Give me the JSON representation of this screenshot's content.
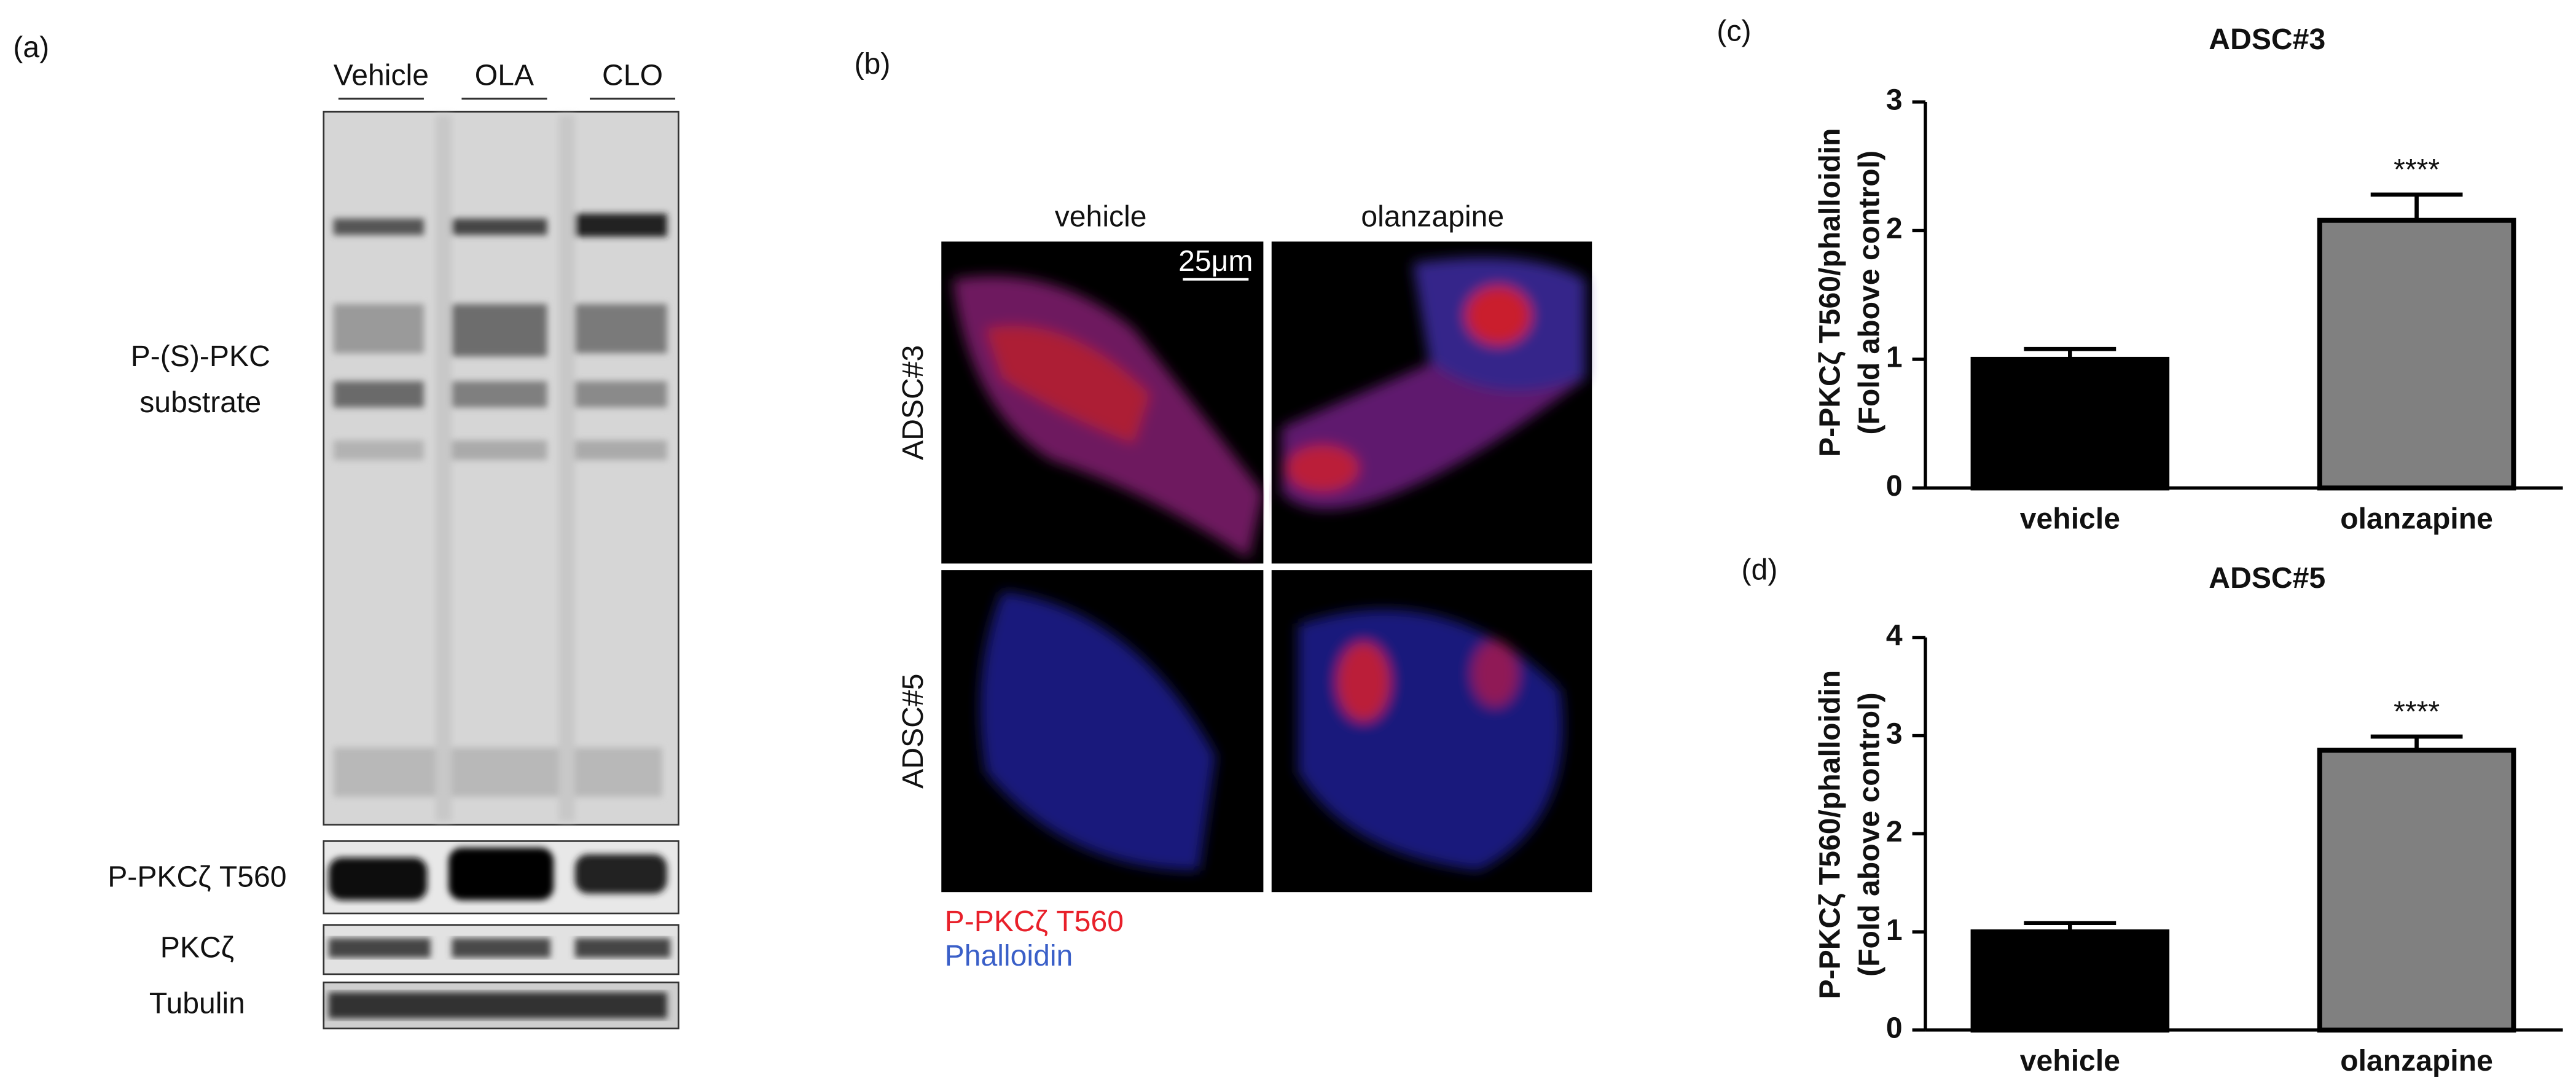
{
  "figure": {
    "a": {
      "label": "(a)",
      "lanes": [
        "Vehicle",
        "OLA",
        "CLO"
      ],
      "substrate_label": [
        "P-(S)-PKC",
        "substrate"
      ],
      "blots": [
        "P-PKCζ T560",
        "PKCζ",
        "Tubulin"
      ]
    },
    "b": {
      "label": "(b)",
      "columns": [
        "vehicle",
        "olanzapine"
      ],
      "rows": [
        "ADSC#3",
        "ADSC#5"
      ],
      "scale_bar": "25μm",
      "legend": [
        {
          "text": "P-PKCζ T560",
          "color": "#e8202a"
        },
        {
          "text": "Phalloidin",
          "color": "#3a5fc8"
        }
      ]
    }
  },
  "chart_data": [
    {
      "type": "bar",
      "panel_label": "(c)",
      "title": "ADSC#3",
      "ylabel": [
        "P-PKCζ T560/phalloidin",
        "(Fold above control)"
      ],
      "categories": [
        "vehicle",
        "olanzapine"
      ],
      "values": [
        1.0,
        2.08
      ],
      "errors": [
        0.08,
        0.2
      ],
      "colors": [
        "#000000",
        "#808080"
      ],
      "significance": [
        null,
        "****"
      ],
      "ylim": [
        0,
        3
      ],
      "yticks": [
        0,
        1,
        2,
        3
      ]
    },
    {
      "type": "bar",
      "panel_label": "(d)",
      "title": "ADSC#5",
      "ylabel": [
        "P-PKCζ T560/phalloidin",
        "(Fold above control)"
      ],
      "categories": [
        "vehicle",
        "olanzapine"
      ],
      "values": [
        1.0,
        2.85
      ],
      "errors": [
        0.09,
        0.14
      ],
      "colors": [
        "#000000",
        "#808080"
      ],
      "significance": [
        null,
        "****"
      ],
      "ylim": [
        0,
        4
      ],
      "yticks": [
        0,
        1,
        2,
        3,
        4
      ]
    }
  ]
}
